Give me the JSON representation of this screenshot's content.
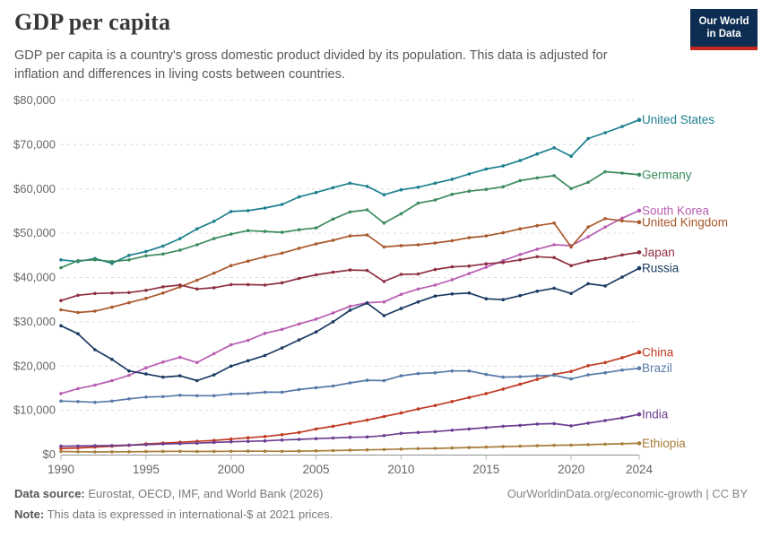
{
  "header": {
    "title": "GDP per capita",
    "subtitle": "GDP per capita is a country's gross domestic product divided by its population. This data is adjusted for inflation and differences in living costs between countries.",
    "logo": {
      "line1": "Our World",
      "line2": "in Data",
      "bg_color": "#0d2e52",
      "accent_color": "#c5261e"
    }
  },
  "chart_data": {
    "type": "line",
    "title": "GDP per capita",
    "xlabel": "",
    "ylabel": "",
    "x": [
      1990,
      1991,
      1992,
      1993,
      1994,
      1995,
      1996,
      1997,
      1998,
      1999,
      2000,
      2001,
      2002,
      2003,
      2004,
      2005,
      2006,
      2007,
      2008,
      2009,
      2010,
      2011,
      2012,
      2013,
      2014,
      2015,
      2016,
      2017,
      2018,
      2019,
      2020,
      2021,
      2022,
      2023,
      2024
    ],
    "x_ticks": [
      1990,
      1995,
      2000,
      2005,
      2010,
      2015,
      2020,
      2024
    ],
    "y_ticks": [
      0,
      10000,
      20000,
      30000,
      40000,
      50000,
      60000,
      70000,
      80000
    ],
    "ylim": [
      0,
      80000
    ],
    "xlim": [
      1990,
      2024
    ],
    "y_prefix": "$",
    "grid": "horizontal-dashed",
    "legend_position": "right-end-labels",
    "series": [
      {
        "name": "United States",
        "color": "#1c7f8e",
        "values": [
          44000,
          43600,
          44300,
          43200,
          45000,
          45900,
          47100,
          48800,
          51000,
          52700,
          54900,
          55100,
          55700,
          56500,
          58200,
          59200,
          60300,
          61300,
          60600,
          58700,
          59800,
          60400,
          61300,
          62200,
          63400,
          64500,
          65200,
          66400,
          67900,
          69300,
          67400,
          71400,
          72700,
          74100,
          75600
        ]
      },
      {
        "name": "Germany",
        "color": "#3b8b5e",
        "values": [
          42200,
          43800,
          44000,
          43600,
          44000,
          44900,
          45300,
          46200,
          47400,
          48800,
          49800,
          50600,
          50400,
          50200,
          50800,
          51200,
          53200,
          54800,
          55300,
          52300,
          54400,
          56800,
          57500,
          58800,
          59500,
          59900,
          60500,
          61900,
          62500,
          63000,
          60100,
          61500,
          63900,
          63600,
          63200
        ]
      },
      {
        "name": "South Korea",
        "color": "#b85eb2",
        "values": [
          13800,
          14900,
          15700,
          16700,
          17900,
          19600,
          20900,
          22000,
          20800,
          22800,
          24800,
          25800,
          27400,
          28300,
          29500,
          30600,
          32000,
          33500,
          34300,
          34500,
          36200,
          37400,
          38300,
          39500,
          40900,
          42300,
          43800,
          45200,
          46400,
          47400,
          47200,
          49200,
          51400,
          53400,
          55100
        ]
      },
      {
        "name": "United Kingdom",
        "color": "#a9592c",
        "values": [
          32700,
          32100,
          32400,
          33300,
          34300,
          35300,
          36500,
          37900,
          39400,
          41000,
          42700,
          43700,
          44700,
          45500,
          46600,
          47600,
          48400,
          49400,
          49600,
          46900,
          47200,
          47400,
          47800,
          48300,
          49000,
          49400,
          50100,
          51000,
          51700,
          52300,
          46900,
          51400,
          53300,
          52800,
          52500
        ]
      },
      {
        "name": "Japan",
        "color": "#8e2f42",
        "values": [
          34800,
          36000,
          36400,
          36500,
          36600,
          37100,
          37900,
          38300,
          37400,
          37700,
          38400,
          38400,
          38300,
          38800,
          39800,
          40600,
          41200,
          41700,
          41600,
          39100,
          40700,
          40800,
          41800,
          42400,
          42600,
          43100,
          43400,
          44000,
          44700,
          44500,
          42700,
          43700,
          44300,
          45100,
          45700
        ]
      },
      {
        "name": "Russia",
        "color": "#1b3a63",
        "values": [
          29100,
          27300,
          23700,
          21500,
          18900,
          18200,
          17500,
          17800,
          16700,
          18000,
          20000,
          21200,
          22400,
          24100,
          25900,
          27700,
          30000,
          32600,
          34200,
          31400,
          33000,
          34500,
          35800,
          36300,
          36500,
          35200,
          35000,
          35900,
          36900,
          37600,
          36400,
          38600,
          38100,
          40100,
          42100
        ]
      },
      {
        "name": "China",
        "color": "#c03a21",
        "values": [
          1400,
          1500,
          1700,
          1900,
          2100,
          2400,
          2600,
          2800,
          3000,
          3200,
          3500,
          3800,
          4100,
          4500,
          5000,
          5800,
          6400,
          7100,
          7800,
          8600,
          9400,
          10300,
          11100,
          12000,
          12900,
          13800,
          14800,
          15900,
          17000,
          18100,
          18800,
          20100,
          20800,
          21900,
          23100
        ]
      },
      {
        "name": "Brazil",
        "color": "#577aa8",
        "values": [
          12100,
          12000,
          11800,
          12100,
          12600,
          13000,
          13100,
          13400,
          13300,
          13300,
          13700,
          13800,
          14100,
          14100,
          14700,
          15100,
          15500,
          16200,
          16800,
          16700,
          17800,
          18300,
          18500,
          18900,
          18900,
          18100,
          17500,
          17600,
          17800,
          17900,
          17100,
          18000,
          18500,
          19100,
          19500
        ]
      },
      {
        "name": "India",
        "color": "#6d3e91",
        "values": [
          1900,
          1950,
          2000,
          2050,
          2150,
          2250,
          2400,
          2500,
          2600,
          2750,
          2900,
          3000,
          3100,
          3300,
          3450,
          3600,
          3750,
          3900,
          4000,
          4300,
          4800,
          5000,
          5200,
          5500,
          5800,
          6100,
          6400,
          6600,
          6900,
          7000,
          6500,
          7100,
          7700,
          8300,
          9100
        ]
      },
      {
        "name": "Ethiopia",
        "color": "#a87e3c",
        "values": [
          700,
          650,
          600,
          620,
          640,
          680,
          720,
          740,
          700,
          720,
          740,
          780,
          760,
          740,
          800,
          860,
          920,
          1000,
          1080,
          1150,
          1250,
          1350,
          1400,
          1500,
          1600,
          1700,
          1800,
          1900,
          2000,
          2100,
          2150,
          2250,
          2350,
          2450,
          2550
        ]
      }
    ]
  },
  "footer": {
    "source_label": "Data source:",
    "source_text": " Eurostat, OECD, IMF, and World Bank (2026)",
    "note_label": "Note:",
    "note_text": " This data is expressed in international-$ at 2021 prices.",
    "link_text": "OurWorldinData.org/economic-growth | CC BY"
  }
}
